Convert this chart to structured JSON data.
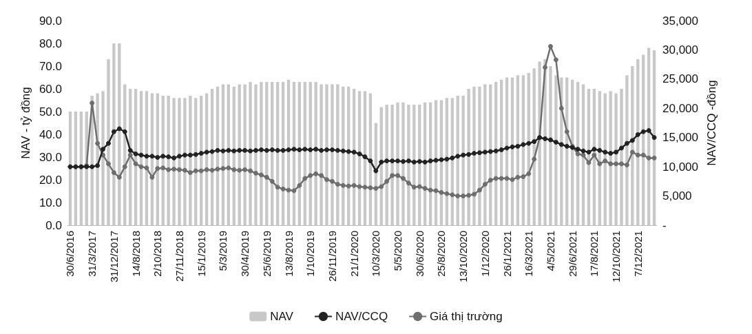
{
  "chart_data": {
    "type": "bar",
    "ylabel": "NAV - tỷ đồng",
    "y2label": "NAV/CCQ -đồng",
    "categories": [
      "30/6/2016",
      null,
      null,
      null,
      "31/3/2017",
      null,
      null,
      null,
      "31/12/2017",
      null,
      null,
      null,
      "14/8/2018",
      null,
      null,
      null,
      "2/10/2018",
      null,
      null,
      null,
      "27/11/2018",
      null,
      null,
      null,
      "15/1/2019",
      null,
      null,
      null,
      "5/3/2019",
      null,
      null,
      null,
      "30/4/2019",
      null,
      null,
      null,
      "25/6/2019",
      null,
      null,
      null,
      "13/8/2019",
      null,
      null,
      null,
      "1/10/2019",
      null,
      null,
      null,
      "26/11/2019",
      null,
      null,
      null,
      "21/1/2020",
      null,
      null,
      null,
      "10/3/2020",
      null,
      null,
      null,
      "5/5/2020",
      null,
      null,
      null,
      "30/6/2020",
      null,
      null,
      null,
      "25/8/2020",
      null,
      null,
      null,
      "13/10/2020",
      null,
      null,
      null,
      "1/12/2020",
      null,
      null,
      null,
      "26/1/2021",
      null,
      null,
      null,
      "16/3/2021",
      null,
      null,
      null,
      "4/5/2021",
      null,
      null,
      null,
      "29/6/2021",
      null,
      null,
      null,
      "17/8/2021",
      null,
      null,
      null,
      "12/10/2021",
      null,
      null,
      null,
      "7/12/2021",
      null,
      null,
      null
    ],
    "series": [
      {
        "name": "NAV",
        "color": "#c8c8c8",
        "values": [
          50,
          50,
          50,
          50,
          57,
          58,
          59,
          73,
          80,
          80,
          62,
          60,
          60,
          59,
          59,
          58,
          58,
          57,
          57,
          56,
          56,
          56,
          57,
          56,
          57,
          58,
          60,
          61,
          62,
          62,
          61,
          62,
          62,
          63,
          62,
          63,
          63,
          63,
          63,
          63,
          64,
          63,
          63,
          63,
          63,
          63,
          62,
          62,
          62,
          62,
          61,
          61,
          60,
          59,
          59,
          58,
          45,
          52,
          53,
          53,
          54,
          54,
          53,
          53,
          53,
          54,
          54,
          55,
          55,
          56,
          56,
          57,
          57,
          60,
          61,
          61,
          62,
          62,
          63,
          64,
          65,
          65,
          66,
          66,
          67,
          69,
          72,
          73,
          70,
          66,
          65,
          65,
          64,
          63,
          62,
          60,
          60,
          59,
          58,
          59,
          58,
          60,
          66,
          70,
          73,
          75,
          78,
          77
        ]
      },
      {
        "name": "NAV/CCQ",
        "type": "line",
        "axis": "y2",
        "color": "#222222",
        "values": [
          10000,
          10000,
          10000,
          10000,
          10000,
          10200,
          13000,
          14000,
          16000,
          16500,
          16000,
          12800,
          12200,
          12000,
          11800,
          11800,
          11600,
          11800,
          11700,
          11500,
          11800,
          12000,
          12000,
          12100,
          12300,
          12500,
          12600,
          12800,
          12700,
          12800,
          12700,
          12800,
          12800,
          12700,
          12800,
          12900,
          12800,
          12900,
          12800,
          12800,
          12900,
          13000,
          12900,
          13000,
          12900,
          13000,
          12800,
          12900,
          12900,
          12800,
          12700,
          12600,
          12500,
          12200,
          11700,
          11000,
          9300,
          10800,
          11000,
          11000,
          11000,
          10900,
          11000,
          10800,
          10900,
          10800,
          11000,
          11100,
          11200,
          11300,
          11500,
          11800,
          12000,
          12100,
          12300,
          12400,
          12500,
          12600,
          12700,
          12900,
          13200,
          13400,
          13500,
          13800,
          14000,
          14300,
          15000,
          14800,
          14600,
          14200,
          13800,
          13500,
          13300,
          13000,
          12700,
          12500,
          13000,
          12800,
          12500,
          12300,
          12500,
          13200,
          14000,
          14500,
          15500,
          16000,
          16200,
          15000
        ]
      },
      {
        "name": "Giá thị trường",
        "type": "line",
        "axis": "y2",
        "color": "#6e6e6e",
        "values": [
          10000,
          10000,
          10000,
          10200,
          20900,
          14000,
          12000,
          10500,
          9000,
          8200,
          10000,
          12000,
          10500,
          10000,
          9800,
          8200,
          9700,
          9800,
          9500,
          9600,
          9500,
          9400,
          9000,
          9300,
          9300,
          9500,
          9400,
          9600,
          9700,
          9800,
          9500,
          9400,
          9500,
          9300,
          8900,
          8600,
          8200,
          7500,
          6500,
          6200,
          6000,
          5900,
          6800,
          8000,
          8500,
          8800,
          8500,
          7800,
          7500,
          7000,
          6800,
          6700,
          6800,
          6600,
          6500,
          6400,
          6300,
          6600,
          7500,
          8500,
          8500,
          8000,
          7200,
          6500,
          6600,
          6300,
          6000,
          5900,
          5600,
          5400,
          5200,
          5000,
          5000,
          5100,
          5300,
          6000,
          7000,
          7700,
          8000,
          8000,
          8000,
          7800,
          8200,
          8300,
          8800,
          11300,
          15000,
          27000,
          30600,
          28300,
          20000,
          16000,
          13500,
          12200,
          12000,
          10700,
          12000,
          10500,
          11000,
          10500,
          10500,
          10500,
          10300,
          12500,
          12000,
          12000,
          11500,
          11500
        ]
      }
    ],
    "ylim": [
      0,
      90
    ],
    "yticks": [
      {
        "value": 0,
        "label": "0.0"
      },
      {
        "value": 10,
        "label": "10.0"
      },
      {
        "value": 20,
        "label": "20.0"
      },
      {
        "value": 30,
        "label": "30.0"
      },
      {
        "value": 40,
        "label": "40.0"
      },
      {
        "value": 50,
        "label": "50.0"
      },
      {
        "value": 60,
        "label": "60.0"
      },
      {
        "value": 70,
        "label": "70.0"
      },
      {
        "value": 80,
        "label": "80.0"
      },
      {
        "value": 90,
        "label": "90.0"
      }
    ],
    "y2lim": [
      0,
      35000
    ],
    "y2ticks": [
      {
        "value": 0,
        "label": "-"
      },
      {
        "value": 5000,
        "label": "5,000"
      },
      {
        "value": 10000,
        "label": "10,000"
      },
      {
        "value": 15000,
        "label": "15,000"
      },
      {
        "value": 20000,
        "label": "20,000"
      },
      {
        "value": 25000,
        "label": "25,000"
      },
      {
        "value": 30000,
        "label": "30,000"
      },
      {
        "value": 35000,
        "label": "35,000"
      }
    ],
    "marker": "circle",
    "grid": false,
    "legend": "bottom"
  }
}
